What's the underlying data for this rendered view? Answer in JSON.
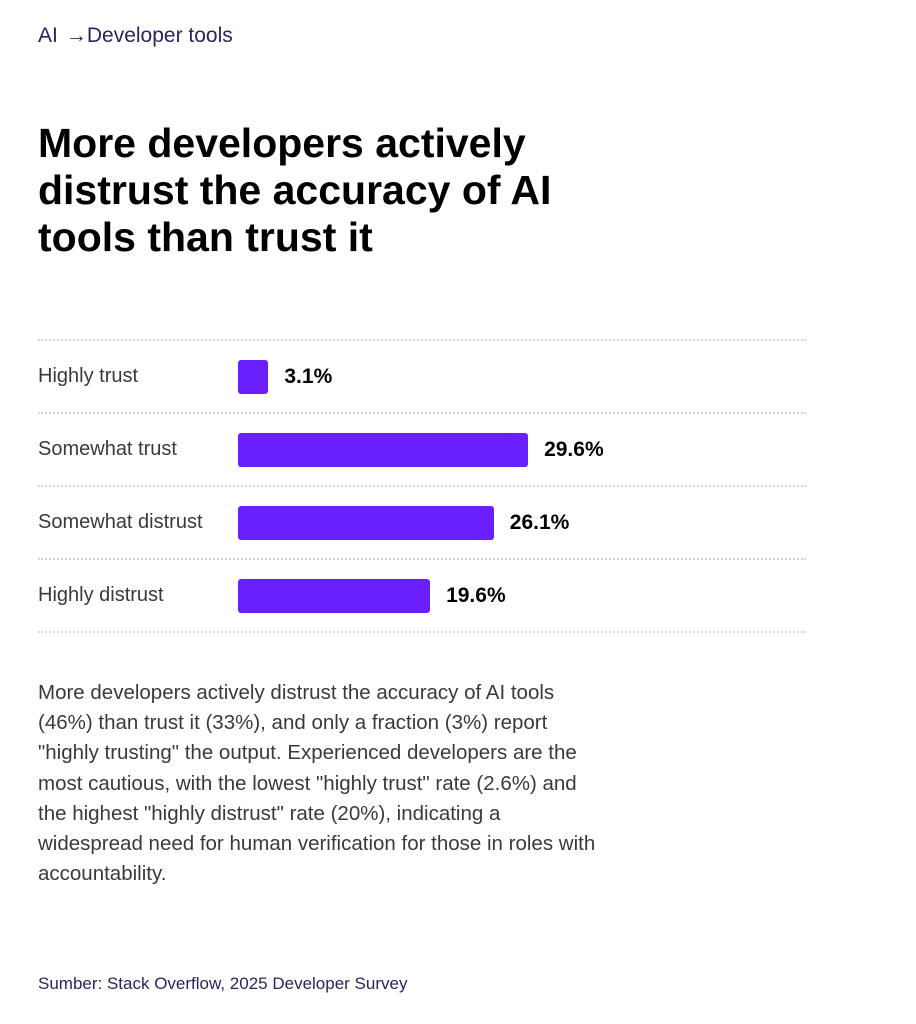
{
  "breadcrumb": {
    "parent": "AI",
    "separator": "→",
    "current": "Developer tools"
  },
  "title": "More developers actively distrust the accuracy of AI tools than trust it",
  "chart_data": {
    "type": "bar",
    "orientation": "horizontal",
    "categories": [
      "Highly trust",
      "Somewhat trust",
      "Somewhat distrust",
      "Highly distrust"
    ],
    "values": [
      3.1,
      29.6,
      26.1,
      19.6
    ],
    "value_labels": [
      "3.1%",
      "29.6%",
      "26.1%",
      "19.6%"
    ],
    "title": "",
    "xlabel": "",
    "ylabel": "",
    "xlim": [
      0,
      100
    ],
    "grid": true,
    "bar_color": "#6a1fff"
  },
  "description": "More developers actively distrust the accuracy of AI tools (46%) than trust it (33%), and only a fraction (3%) report \"highly trusting\" the output. Experienced developers are the most cautious, with the lowest \"highly trust\" rate (2.6%) and the highest \"highly distrust\" rate (20%), indicating a widespread need for human verification for those in roles with accountability.",
  "source": "Sumber: Stack Overflow, 2025 Developer Survey",
  "colors": {
    "accent": "#6a1fff",
    "breadcrumb": "#2b2461",
    "text": "#3a3a3a"
  }
}
